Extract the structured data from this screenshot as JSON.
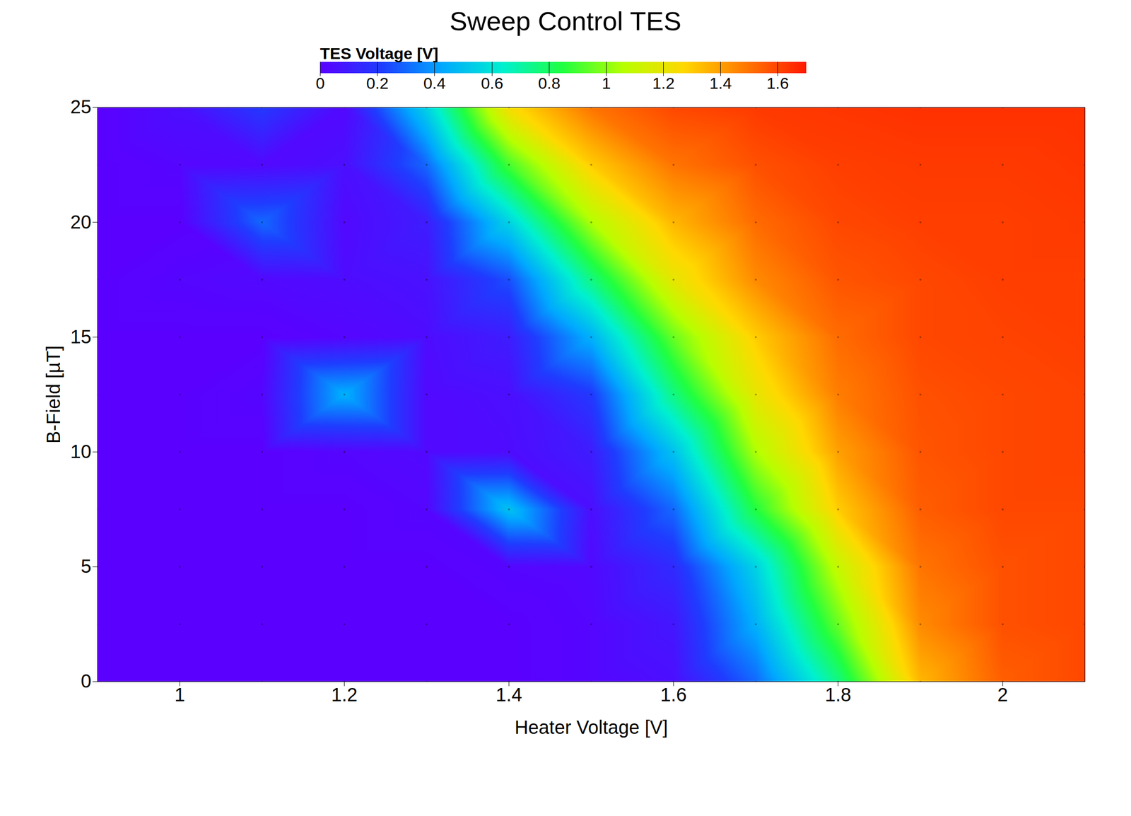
{
  "chart_data": {
    "type": "heatmap",
    "title": "Sweep Control TES",
    "x_label": "Heater Voltage [V]",
    "y_label": "B-Field [µT]",
    "z_label": "TES Voltage [V]",
    "xlim": [
      0.9,
      2.1
    ],
    "xticks": [
      1,
      1.2,
      1.4,
      1.6,
      1.8,
      2
    ],
    "ylim": [
      0,
      25
    ],
    "yticks": [
      0,
      5,
      10,
      15,
      20,
      25
    ],
    "zlim": [
      0,
      1.7
    ],
    "zticks": [
      0,
      0.2,
      0.4,
      0.6,
      0.8,
      1,
      1.2,
      1.4,
      1.6
    ],
    "x": [
      0.9,
      1.0,
      1.1,
      1.2,
      1.3,
      1.4,
      1.5,
      1.6,
      1.7,
      1.8,
      1.9,
      2.0,
      2.1
    ],
    "y": [
      0,
      2.5,
      5,
      7.5,
      10,
      12.5,
      15,
      17.5,
      20,
      22.5,
      25
    ],
    "z": [
      [
        0,
        0,
        0,
        0,
        0,
        0,
        0.02,
        0.05,
        0.3,
        0.75,
        1.35,
        1.55,
        1.6
      ],
      [
        0,
        0,
        0,
        0,
        0,
        0,
        0.02,
        0.08,
        0.45,
        0.95,
        1.45,
        1.58,
        1.6
      ],
      [
        0,
        0,
        0,
        0,
        0,
        0.02,
        0.03,
        0.15,
        0.55,
        1.1,
        1.5,
        1.58,
        1.6
      ],
      [
        0,
        0,
        0,
        0,
        0.02,
        0.5,
        0.05,
        0.3,
        0.85,
        1.3,
        1.55,
        1.6,
        1.6
      ],
      [
        0,
        0,
        0,
        0.02,
        0.03,
        0.04,
        0.1,
        0.5,
        1.05,
        1.4,
        1.57,
        1.6,
        1.61
      ],
      [
        0,
        0,
        0.02,
        0.45,
        0.03,
        0.05,
        0.2,
        0.75,
        1.2,
        1.48,
        1.58,
        1.6,
        1.61
      ],
      [
        0,
        0,
        0,
        0.02,
        0.04,
        0.1,
        0.45,
        0.95,
        1.3,
        1.52,
        1.6,
        1.61,
        1.62
      ],
      [
        0,
        0.02,
        0.03,
        0.04,
        0.06,
        0.25,
        0.75,
        1.2,
        1.45,
        1.57,
        1.6,
        1.62,
        1.62
      ],
      [
        0,
        0,
        0.3,
        0.03,
        0.1,
        0.55,
        1.05,
        1.35,
        1.52,
        1.6,
        1.62,
        1.62,
        1.63
      ],
      [
        0,
        0.02,
        0.03,
        0.05,
        0.3,
        0.9,
        1.3,
        1.5,
        1.58,
        1.62,
        1.63,
        1.63,
        1.64
      ],
      [
        0,
        0.05,
        0.2,
        0.03,
        0.55,
        1.25,
        1.5,
        1.6,
        1.63,
        1.64,
        1.65,
        1.65,
        1.65
      ]
    ]
  }
}
